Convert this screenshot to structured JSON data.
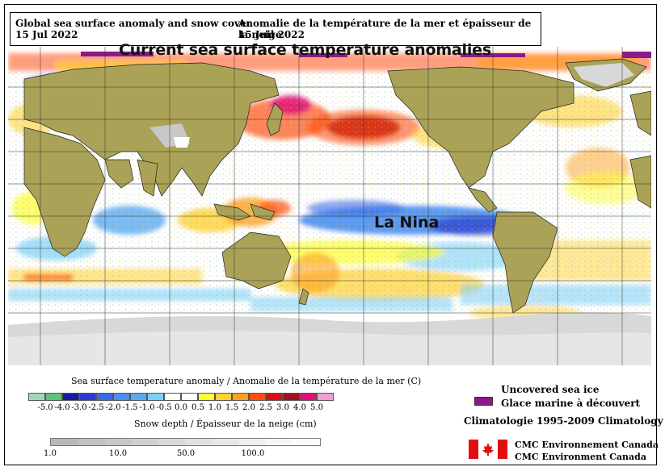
{
  "header": {
    "title_en": "Global sea surface anomaly and snow cover",
    "date_en": "15 Jul 2022",
    "title_fr": "Anomalie de la température de la mer et épaisseur de la neige",
    "date_fr": "15 Juil 2022"
  },
  "overlay": {
    "headline": "Current sea surface temperature anomalies",
    "la_nina": "La Nina"
  },
  "sst_legend": {
    "title": "Sea surface temperature anomaly / Anomalie de la température de la mer (C)",
    "ticks": [
      "-5.0",
      "-4.0",
      "-3.0",
      "-2.5",
      "-2.0",
      "-1.5",
      "-1.0",
      "-0.5",
      "0.0",
      "0.5",
      "1.0",
      "1.5",
      "2.0",
      "2.5",
      "3.0",
      "4.0",
      "5.0"
    ],
    "colors": [
      "#9fd8b8",
      "#5fc27a",
      "#1a1aa0",
      "#2a3ad0",
      "#3a6ae8",
      "#4a8ef0",
      "#5aaaf0",
      "#7ad0f8",
      "#ffffff",
      "#ffffff",
      "#ffff30",
      "#ffd230",
      "#ffa020",
      "#ff5010",
      "#d81010",
      "#a01020",
      "#e0107a",
      "#f0a0d0"
    ]
  },
  "snow_legend": {
    "title": "Snow depth / Épaisseur de la neige (cm)",
    "ticks": [
      "1.0",
      "10.0",
      "50.0",
      "100.0"
    ],
    "colors": [
      "#b8b8b8",
      "#c0c0c0",
      "#c8c8c8",
      "#d0d0d0",
      "#d8d8d8",
      "#e0e0e0",
      "#e8e8e8",
      "#f0f0f0",
      "#f6f6f6",
      "#fbfbfb"
    ]
  },
  "ice_legend": {
    "label_en": "Uncovered sea ice",
    "label_fr": "Glace marine à découvert",
    "color": "#8a1a8a"
  },
  "climatology": "Climatologie 1995-2009 Climatology",
  "credits": {
    "line1": "CMC Environnement Canada",
    "line2": "CMC Environment Canada"
  },
  "map_colors": {
    "land": "#aaa256",
    "land_border": "#222222",
    "snow_ice": "#d8d8d8",
    "grid": "#333333"
  }
}
